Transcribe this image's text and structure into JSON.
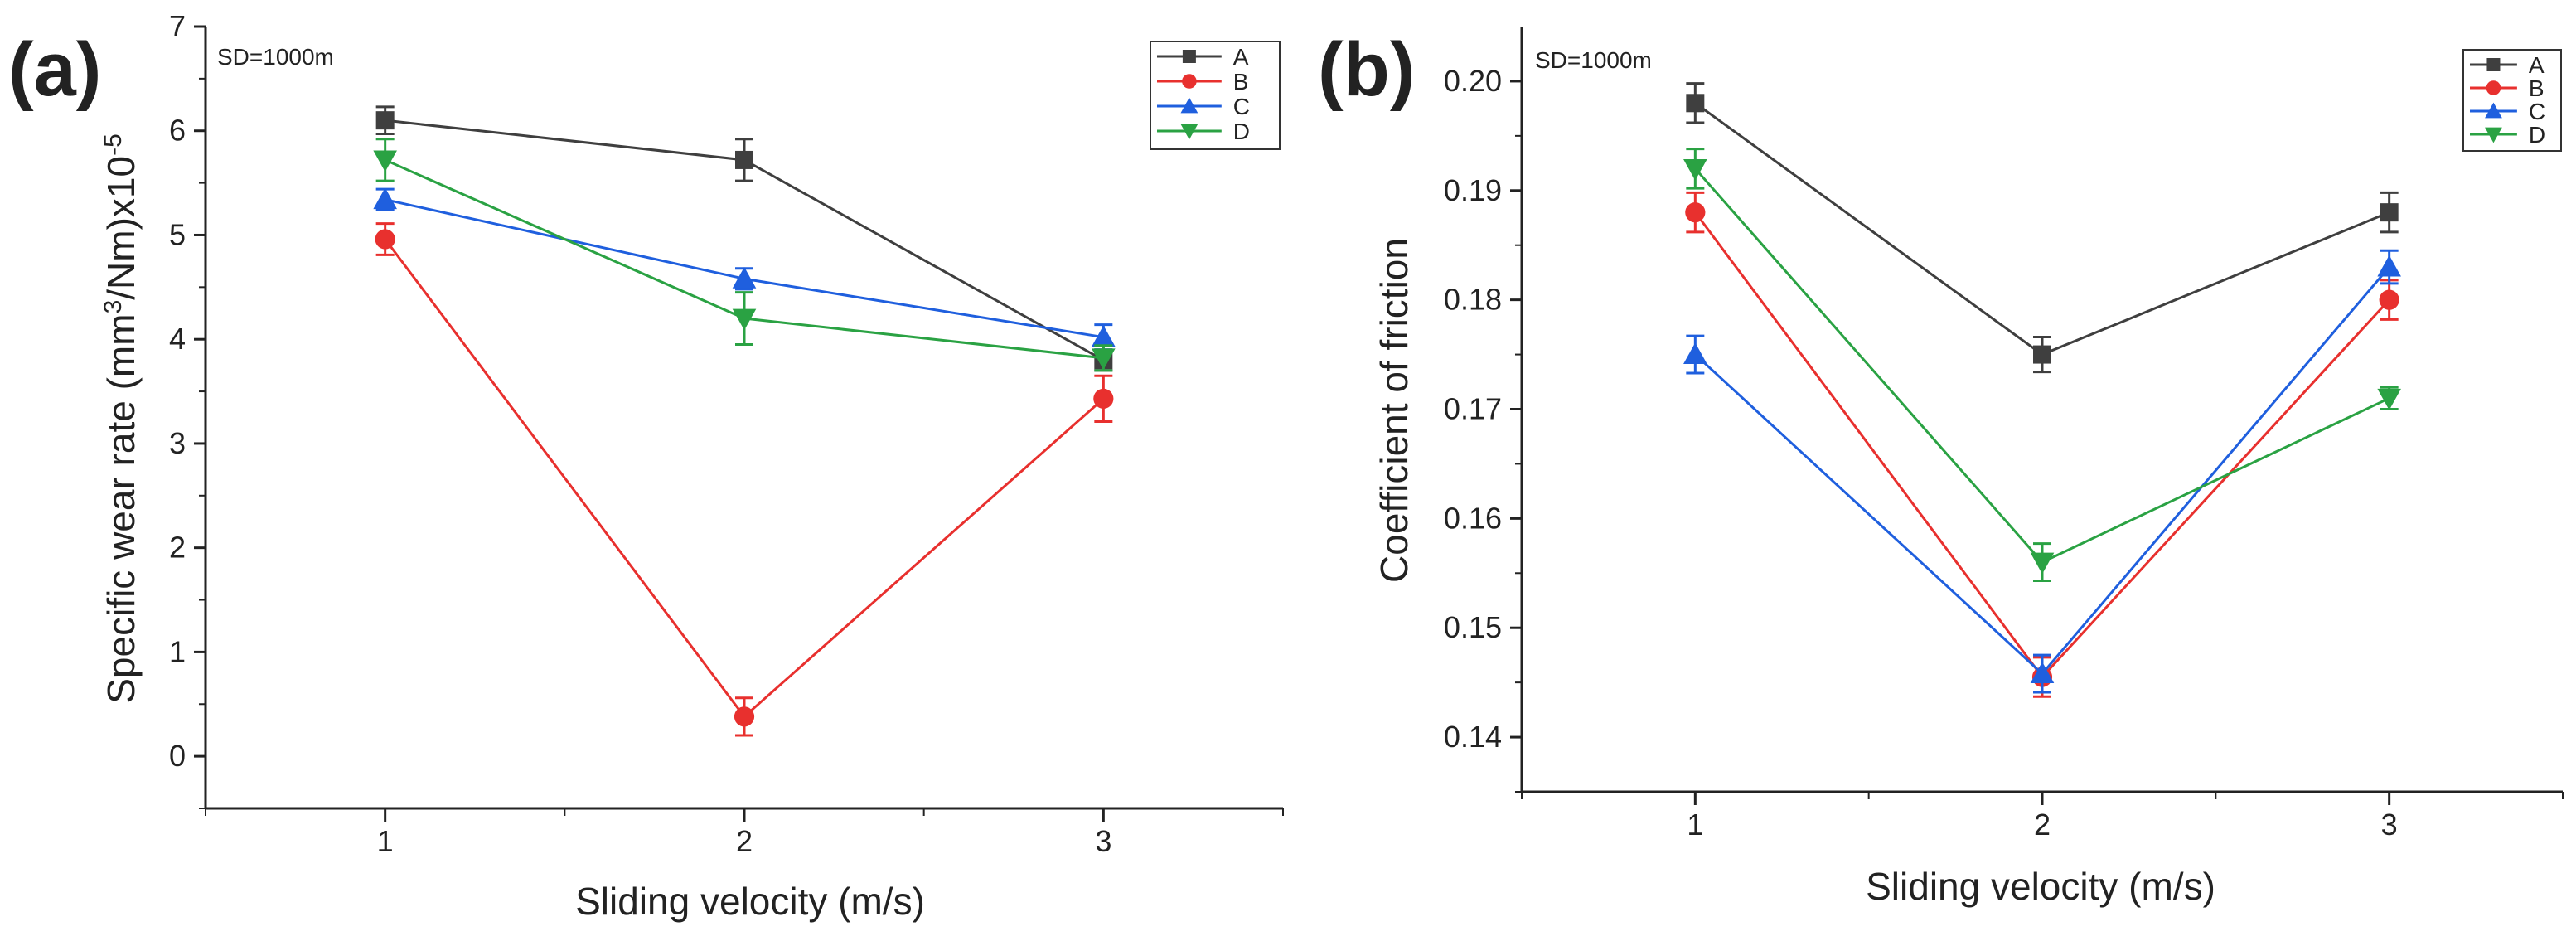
{
  "chart_data": [
    {
      "type": "line",
      "panel_label": "(a)",
      "annotation": "SD=1000m",
      "xlabel": "Sliding velocity (m/s)",
      "ylabel_prefix": "Specific wear rate (mm",
      "ylabel_sup1": "3",
      "ylabel_mid": "/Nm)x10",
      "ylabel_sup2": "-5",
      "xlim": [
        0.5,
        3.5
      ],
      "ylim": [
        -0.5,
        7
      ],
      "x_ticks": [
        1,
        2,
        3
      ],
      "x_tick_labels": [
        "1",
        "2",
        "3"
      ],
      "y_ticks": [
        0,
        1,
        2,
        3,
        4,
        5,
        6,
        7
      ],
      "y_tick_labels": [
        "0",
        "1",
        "2",
        "3",
        "4",
        "5",
        "6",
        "7"
      ],
      "grid": false,
      "legend_position": "top-right",
      "x": [
        1,
        2,
        3
      ],
      "series": [
        {
          "name": "A",
          "color": "#3f3f3f",
          "marker": "square",
          "values": [
            6.1,
            5.72,
            3.8
          ],
          "errors": [
            0.13,
            0.2,
            0.1
          ]
        },
        {
          "name": "B",
          "color": "#e8302e",
          "marker": "circle",
          "values": [
            4.96,
            0.38,
            3.43
          ],
          "errors": [
            0.15,
            0.18,
            0.22
          ]
        },
        {
          "name": "C",
          "color": "#1f5fde",
          "marker": "triangle-up",
          "values": [
            5.34,
            4.58,
            4.02
          ],
          "errors": [
            0.1,
            0.1,
            0.12
          ]
        },
        {
          "name": "D",
          "color": "#2aa243",
          "marker": "triangle-down",
          "values": [
            5.72,
            4.2,
            3.82
          ],
          "errors": [
            0.2,
            0.25,
            0.12
          ]
        }
      ]
    },
    {
      "type": "line",
      "panel_label": "(b)",
      "annotation": "SD=1000m",
      "xlabel": "Sliding velocity (m/s)",
      "ylabel": "Coefficient of friction",
      "xlim": [
        0.5,
        3.5
      ],
      "ylim": [
        0.135,
        0.205
      ],
      "x_ticks": [
        1,
        2,
        3
      ],
      "x_tick_labels": [
        "1",
        "2",
        "3"
      ],
      "y_ticks": [
        0.14,
        0.15,
        0.16,
        0.17,
        0.18,
        0.19,
        0.2
      ],
      "y_tick_labels": [
        "0.14",
        "0.15",
        "0.16",
        "0.17",
        "0.18",
        "0.19",
        "0.20"
      ],
      "grid": false,
      "legend_position": "top-right",
      "x": [
        1,
        2,
        3
      ],
      "series": [
        {
          "name": "A",
          "color": "#3f3f3f",
          "marker": "square",
          "values": [
            0.198,
            0.175,
            0.188
          ],
          "errors": [
            0.0018,
            0.0016,
            0.0018
          ]
        },
        {
          "name": "B",
          "color": "#e8302e",
          "marker": "circle",
          "values": [
            0.188,
            0.1455,
            0.18
          ],
          "errors": [
            0.0018,
            0.0018,
            0.0018
          ]
        },
        {
          "name": "C",
          "color": "#1f5fde",
          "marker": "triangle-up",
          "values": [
            0.175,
            0.1458,
            0.183
          ],
          "errors": [
            0.0017,
            0.0017,
            0.0015
          ]
        },
        {
          "name": "D",
          "color": "#2aa243",
          "marker": "triangle-down",
          "values": [
            0.192,
            0.156,
            0.171
          ],
          "errors": [
            0.0018,
            0.0017,
            0.001
          ]
        }
      ]
    }
  ]
}
